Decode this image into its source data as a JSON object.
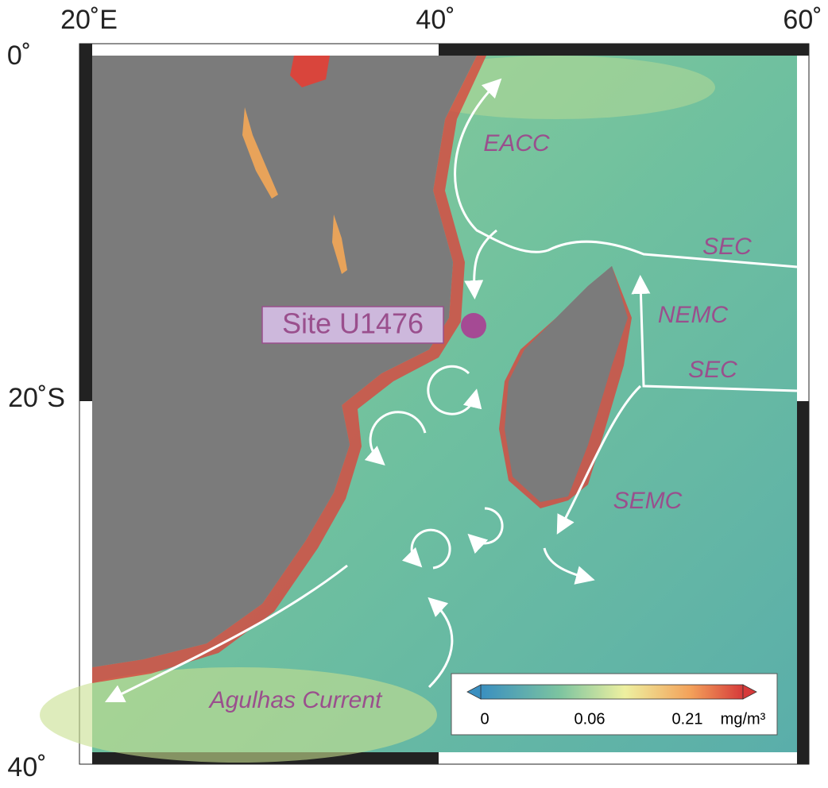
{
  "axes": {
    "lon_labels": [
      "20˚E",
      "40˚",
      "60˚"
    ],
    "lat_labels": [
      "0˚",
      "20˚S",
      "40˚"
    ]
  },
  "site": {
    "label": "Site U1476"
  },
  "currents": [
    "EACC",
    "SEC",
    "NEMC",
    "SEC",
    "SEMC",
    "Agulhas Current"
  ],
  "colorbar": {
    "ticks": [
      "0",
      "0.06",
      "0.21"
    ],
    "unit": "mg/m³"
  }
}
